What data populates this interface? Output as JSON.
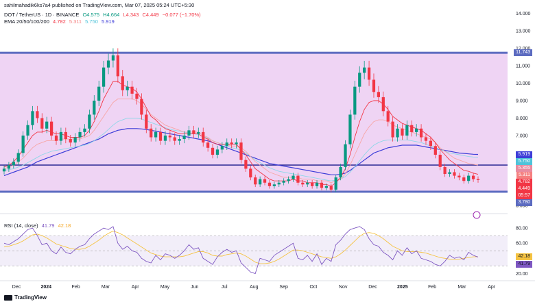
{
  "header": {
    "publisher": "sahilmahadik6ks7a4 published on TradingView.com, Mar 07, 2025 05:24 UTC+5:30",
    "symbol": "DOT / TetherUS · 1D · BINANCE",
    "ohlc": {
      "o": "O4.575",
      "h": "H4.664",
      "l": "L4.343",
      "c": "C4.449",
      "chg": "−0.077 (−1.70%)"
    },
    "ema_title": "EMA 20/50/100/200",
    "ema_vals": [
      "4.782",
      "5.311",
      "5.750",
      "5.919"
    ],
    "rsi_title": "RSI (14, close)",
    "rsi_vals": [
      "41.79",
      "42.18"
    ]
  },
  "footer": {
    "brand": "TradingView"
  },
  "colors": {
    "up": "#089981",
    "down": "#f23645",
    "ema20": "#f23645",
    "ema50": "#f7a6a6",
    "ema100": "#8fd7e8",
    "ema200": "#3d3dd8",
    "zone": "#e9c6f0",
    "rsi": "#7e57c2",
    "rsi_ma": "#f5c342",
    "sr": "#1a1a8c"
  },
  "chart_data": {
    "type": "candlestick",
    "symbol": "DOT / TetherUS",
    "interval": "1D",
    "x_ticks": [
      "Dec",
      "2024",
      "Feb",
      "Mar",
      "Apr",
      "May",
      "Jun",
      "Jul",
      "Aug",
      "Sep",
      "Oct",
      "Nov",
      "Dec",
      "2025",
      "Feb",
      "Mar",
      "Apr"
    ],
    "y_ticks": [
      "14.000",
      "13.000",
      "12.000",
      "11.000",
      "10.000",
      "9.000",
      "8.000",
      "7.000",
      "6.000",
      "5.000",
      "4.000",
      "3.000"
    ],
    "ylim": [
      2.8,
      14.3
    ],
    "resistance": 11.743,
    "support": 3.78,
    "mid_line": 5.311,
    "price_tags": [
      {
        "label": "11.743",
        "value": 11.743,
        "color": "#5c6bc0"
      },
      {
        "label": "5.919",
        "value": 5.919,
        "color": "#3d3dd8"
      },
      {
        "label": "5.750",
        "value": 5.75,
        "color": "#4fc3d9"
      },
      {
        "label": "5.355",
        "value": 5.355,
        "color": "#e88ba0"
      },
      {
        "label": "5.311",
        "value": 5.311,
        "color": "#f57f7f"
      },
      {
        "label": "4.782",
        "value": 4.782,
        "color": "#f23645"
      },
      {
        "label": "4.449",
        "value": 4.449,
        "color": "#f23645"
      },
      {
        "label": "05:57",
        "value": 4.2,
        "color": "#f23645"
      },
      {
        "label": "3.780",
        "value": 3.78,
        "color": "#5c6bc0"
      }
    ],
    "closes": [
      5.1,
      5.3,
      5.5,
      6.0,
      7.0,
      7.6,
      8.4,
      8.0,
      7.4,
      7.8,
      7.0,
      6.7,
      7.2,
      6.8,
      6.6,
      6.9,
      7.2,
      7.4,
      8.2,
      9.0,
      9.8,
      10.9,
      11.3,
      11.6,
      10.4,
      9.6,
      9.8,
      9.4,
      9.1,
      8.2,
      7.4,
      6.9,
      7.2,
      6.7,
      7.0,
      6.9,
      6.7,
      6.8,
      7.0,
      7.3,
      7.1,
      7.2,
      6.6,
      6.3,
      5.9,
      6.2,
      6.4,
      6.6,
      6.5,
      6.6,
      5.6,
      5.1,
      4.6,
      4.2,
      4.5,
      4.3,
      4.1,
      4.2,
      4.3,
      4.4,
      4.5,
      4.7,
      4.3,
      4.2,
      4.3,
      4.1,
      4.3,
      4.0,
      4.1,
      3.9,
      4.6,
      5.2,
      6.5,
      8.2,
      9.8,
      10.6,
      10.9,
      10.2,
      9.5,
      9.2,
      8.4,
      7.8,
      6.9,
      7.4,
      7.0,
      7.6,
      7.2,
      7.4,
      6.9,
      6.7,
      6.4,
      5.9,
      5.2,
      4.8,
      4.9,
      4.7,
      4.6,
      4.4,
      4.7,
      4.5,
      4.45
    ],
    "ema20": [
      5.2,
      5.3,
      5.5,
      5.8,
      6.2,
      6.6,
      7.0,
      7.2,
      7.2,
      7.3,
      7.2,
      7.1,
      7.1,
      7.0,
      6.9,
      6.9,
      6.9,
      7.0,
      7.3,
      7.8,
      8.4,
      9.1,
      9.6,
      10.1,
      10.1,
      9.9,
      9.8,
      9.7,
      9.5,
      9.1,
      8.6,
      8.1,
      7.9,
      7.6,
      7.4,
      7.3,
      7.2,
      7.1,
      7.1,
      7.1,
      7.1,
      7.1,
      6.9,
      6.8,
      6.6,
      6.5,
      6.5,
      6.5,
      6.5,
      6.5,
      6.2,
      5.9,
      5.5,
      5.1,
      4.9,
      4.7,
      4.5,
      4.4,
      4.4,
      4.4,
      4.4,
      4.5,
      4.4,
      4.4,
      4.3,
      4.3,
      4.3,
      4.2,
      4.2,
      4.1,
      4.3,
      4.6,
      5.1,
      5.9,
      6.9,
      7.8,
      8.5,
      8.9,
      9.0,
      9.0,
      8.8,
      8.5,
      8.1,
      7.9,
      7.7,
      7.6,
      7.5,
      7.4,
      7.3,
      7.1,
      6.9,
      6.6,
      6.2,
      5.9,
      5.6,
      5.4,
      5.2,
      5.0,
      4.95,
      4.85,
      4.78
    ],
    "ema50": [
      5.1,
      5.2,
      5.3,
      5.5,
      5.7,
      6.0,
      6.3,
      6.5,
      6.6,
      6.7,
      6.7,
      6.7,
      6.8,
      6.8,
      6.8,
      6.8,
      6.8,
      6.9,
      7.0,
      7.3,
      7.7,
      8.1,
      8.5,
      8.9,
      9.1,
      9.1,
      9.1,
      9.1,
      9.0,
      8.8,
      8.5,
      8.2,
      8.0,
      7.8,
      7.6,
      7.5,
      7.4,
      7.3,
      7.2,
      7.2,
      7.2,
      7.2,
      7.0,
      6.9,
      6.7,
      6.6,
      6.5,
      6.5,
      6.4,
      6.4,
      6.3,
      6.1,
      5.8,
      5.5,
      5.3,
      5.1,
      4.9,
      4.8,
      4.7,
      4.6,
      4.6,
      4.6,
      4.6,
      4.5,
      4.5,
      4.5,
      4.4,
      4.4,
      4.4,
      4.3,
      4.4,
      4.5,
      4.8,
      5.3,
      5.9,
      6.5,
      7.1,
      7.5,
      7.8,
      7.9,
      7.9,
      7.8,
      7.6,
      7.5,
      7.4,
      7.3,
      7.2,
      7.1,
      7.0,
      6.9,
      6.8,
      6.6,
      6.3,
      6.1,
      5.9,
      5.7,
      5.6,
      5.5,
      5.4,
      5.35,
      5.31
    ],
    "ema100": [
      5.0,
      5.05,
      5.1,
      5.2,
      5.3,
      5.45,
      5.6,
      5.75,
      5.9,
      6.0,
      6.1,
      6.15,
      6.2,
      6.25,
      6.3,
      6.35,
      6.4,
      6.45,
      6.55,
      6.7,
      6.9,
      7.1,
      7.35,
      7.6,
      7.8,
      7.9,
      8.0,
      8.0,
      8.0,
      7.95,
      7.85,
      7.75,
      7.65,
      7.55,
      7.45,
      7.35,
      7.3,
      7.25,
      7.2,
      7.15,
      7.1,
      7.05,
      6.95,
      6.85,
      6.7,
      6.6,
      6.5,
      6.4,
      6.3,
      6.25,
      6.15,
      6.0,
      5.8,
      5.6,
      5.45,
      5.3,
      5.15,
      5.05,
      4.95,
      4.9,
      4.85,
      4.8,
      4.75,
      4.7,
      4.65,
      4.6,
      4.55,
      4.5,
      4.45,
      4.4,
      4.45,
      4.5,
      4.65,
      4.9,
      5.2,
      5.55,
      5.9,
      6.2,
      6.45,
      6.6,
      6.7,
      6.75,
      6.75,
      6.75,
      6.75,
      6.75,
      6.7,
      6.65,
      6.6,
      6.5,
      6.4,
      6.3,
      6.2,
      6.1,
      6.0,
      5.95,
      5.9,
      5.85,
      5.8,
      5.77,
      5.75
    ],
    "ema200": [
      4.7,
      4.8,
      4.9,
      5.0,
      5.1,
      5.2,
      5.35,
      5.5,
      5.6,
      5.7,
      5.8,
      5.9,
      6.0,
      6.1,
      6.2,
      6.3,
      6.4,
      6.5,
      6.6,
      6.7,
      6.8,
      6.95,
      7.1,
      7.2,
      7.3,
      7.35,
      7.4,
      7.4,
      7.4,
      7.38,
      7.35,
      7.3,
      7.25,
      7.2,
      7.15,
      7.1,
      7.05,
      7.0,
      6.95,
      6.9,
      6.85,
      6.8,
      6.75,
      6.7,
      6.6,
      6.5,
      6.4,
      6.3,
      6.2,
      6.1,
      6.0,
      5.9,
      5.8,
      5.7,
      5.6,
      5.5,
      5.4,
      5.35,
      5.3,
      5.25,
      5.2,
      5.15,
      5.1,
      5.05,
      5.0,
      4.95,
      4.9,
      4.85,
      4.8,
      4.75,
      4.75,
      4.78,
      4.85,
      5.0,
      5.2,
      5.4,
      5.6,
      5.8,
      6.0,
      6.1,
      6.2,
      6.3,
      6.35,
      6.4,
      6.45,
      6.45,
      6.45,
      6.45,
      6.4,
      6.35,
      6.3,
      6.25,
      6.2,
      6.15,
      6.1,
      6.05,
      6.0,
      5.98,
      5.95,
      5.93,
      5.92
    ],
    "rsi": {
      "title": "RSI (14, close)",
      "ylim": [
        15,
        90
      ],
      "y_ticks": [
        "80.00",
        "60.00",
        "40.00",
        "20.00"
      ],
      "upper_band": 70,
      "lower_band": 30,
      "values": [
        60,
        58,
        62,
        66,
        72,
        78,
        80,
        70,
        58,
        60,
        50,
        46,
        55,
        48,
        46,
        52,
        56,
        58,
        66,
        72,
        76,
        80,
        78,
        82,
        60,
        52,
        56,
        50,
        48,
        40,
        36,
        34,
        44,
        38,
        46,
        44,
        40,
        44,
        50,
        58,
        52,
        54,
        40,
        36,
        32,
        42,
        48,
        52,
        48,
        50,
        34,
        28,
        22,
        20,
        40,
        38,
        36,
        44,
        48,
        52,
        56,
        60,
        40,
        38,
        44,
        36,
        46,
        32,
        40,
        36,
        58,
        64,
        72,
        78,
        80,
        82,
        78,
        66,
        58,
        56,
        48,
        44,
        38,
        50,
        44,
        54,
        46,
        50,
        40,
        38,
        36,
        32,
        30,
        36,
        44,
        40,
        42,
        38,
        48,
        44,
        41.79
      ],
      "ma_values": [
        55,
        56,
        58,
        60,
        63,
        67,
        71,
        72,
        70,
        67,
        63,
        59,
        57,
        55,
        53,
        52,
        52,
        53,
        56,
        60,
        64,
        69,
        73,
        76,
        74,
        71,
        67,
        63,
        59,
        55,
        51,
        47,
        45,
        43,
        42,
        42,
        42,
        42,
        43,
        45,
        47,
        49,
        49,
        47,
        44,
        43,
        43,
        45,
        46,
        47,
        46,
        43,
        39,
        35,
        33,
        33,
        34,
        36,
        39,
        43,
        47,
        51,
        51,
        50,
        48,
        46,
        44,
        42,
        41,
        40,
        42,
        46,
        51,
        57,
        63,
        69,
        73,
        74,
        73,
        70,
        66,
        61,
        56,
        53,
        50,
        49,
        49,
        49,
        48,
        47,
        45,
        43,
        41,
        40,
        39,
        39,
        39,
        40,
        41,
        42,
        42.18
      ]
    }
  }
}
